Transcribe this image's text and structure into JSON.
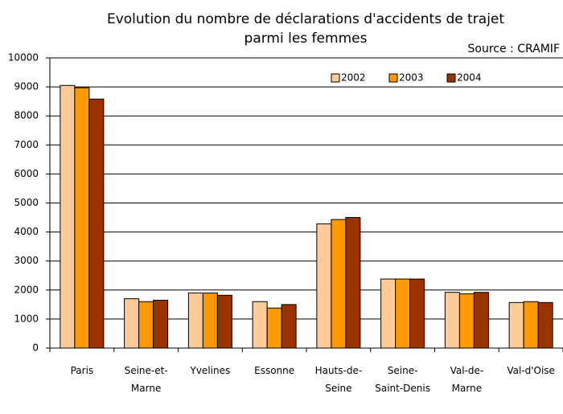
{
  "chart_data": {
    "type": "bar",
    "title": "Evolution du nombre de déclarations d'accidents de trajet\nparmi les femmes",
    "subtitle": "Source : CRAMIF",
    "categories": [
      "Paris",
      "Seine-et-\nMarne",
      "Yvelines",
      "Essonne",
      "Hauts-de-\nSeine",
      "Seine-\nSaint-Denis",
      "Val-de-\nMarne",
      "Val-d'Oise"
    ],
    "series": [
      {
        "name": "2002",
        "color": "#ffcc99",
        "values": [
          9050,
          1700,
          1900,
          1600,
          4280,
          2380,
          1920,
          1570
        ]
      },
      {
        "name": "2003",
        "color": "#ff9900",
        "values": [
          8970,
          1600,
          1900,
          1380,
          4430,
          2380,
          1870,
          1600
        ]
      },
      {
        "name": "2004",
        "color": "#993300",
        "values": [
          8580,
          1650,
          1820,
          1500,
          4500,
          2380,
          1920,
          1570
        ]
      }
    ],
    "ylim": [
      0,
      10000
    ],
    "yticks": [
      0,
      1000,
      2000,
      3000,
      4000,
      5000,
      6000,
      7000,
      8000,
      9000,
      10000
    ],
    "grid": true,
    "legend": "top-right"
  }
}
